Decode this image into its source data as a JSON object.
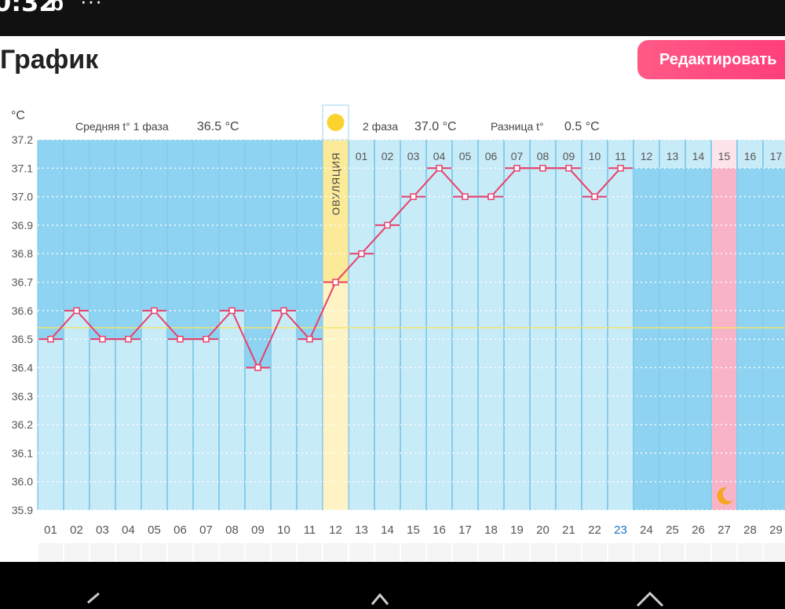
{
  "status_bar": {
    "time": "0:32",
    "carrier_icon": "b",
    "overflow": "···"
  },
  "header": {
    "title": "График",
    "edit_button": "Редактировать"
  },
  "stats": {
    "unit": "°C",
    "phase1_label": "Средняя t° 1 фаза",
    "phase1_value": "36.5 °C",
    "phase2_label": "2 фаза",
    "phase2_value": "37.0 °C",
    "diff_label": "Разница t°",
    "diff_value": "0.5 °C"
  },
  "ovulation_label": "ОВУЛЯЦИЯ",
  "colors": {
    "phase1_bg": "#8fd3f2",
    "phase2_bg": "#c8ebf8",
    "ovulation": "#fbea98",
    "period_day": "#f8b4c6",
    "line": "#e8406a",
    "coverline": "#f3e46b",
    "today_text": "#1a73c0"
  },
  "icons": {
    "ovulation": "sun-icon",
    "period": "moon-icon"
  },
  "chart_data": {
    "type": "line",
    "x_days": [
      "01",
      "02",
      "03",
      "04",
      "05",
      "06",
      "07",
      "08",
      "09",
      "10",
      "11",
      "12",
      "13",
      "14",
      "15",
      "16",
      "17",
      "18",
      "19",
      "20",
      "21",
      "22",
      "23",
      "24",
      "25",
      "26",
      "27",
      "28",
      "29"
    ],
    "phase2_day_labels": [
      "01",
      "02",
      "03",
      "04",
      "05",
      "06",
      "07",
      "08",
      "09",
      "10",
      "11",
      "12",
      "13",
      "14",
      "15",
      "16",
      "17"
    ],
    "y_ticks": [
      "37.2",
      "37.1",
      "37.0",
      "36.9",
      "36.8",
      "36.7",
      "36.6",
      "36.5",
      "36.4",
      "36.3",
      "36.2",
      "36.1",
      "36.0",
      "35.9"
    ],
    "ylim": [
      35.9,
      37.2
    ],
    "series": [
      {
        "values": [
          36.5,
          36.6,
          36.5,
          36.5,
          36.6,
          36.5,
          36.5,
          36.6,
          36.4,
          36.6,
          36.5,
          36.7,
          36.8,
          36.9,
          37.0,
          37.1,
          37.0,
          37.0,
          37.1,
          37.1,
          37.1,
          37.0,
          37.1
        ]
      }
    ],
    "coverline": 36.54,
    "ovulation_day": "12",
    "today_day": "23",
    "period_day": "27",
    "grid": true
  }
}
